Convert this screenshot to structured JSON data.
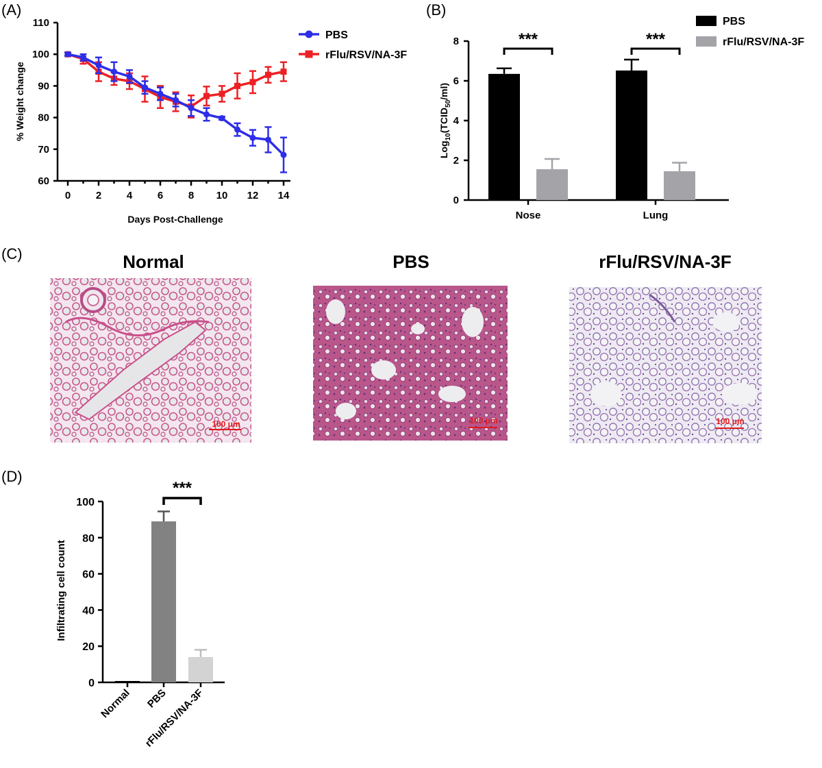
{
  "panels": {
    "A": "(A)",
    "B": "(B)",
    "C": "(C)",
    "D": "(D)"
  },
  "colors": {
    "pbs_line": "#2d2ee8",
    "vaccine_line": "#ec2125",
    "bar_black": "#000000",
    "bar_gray": "#a3a3a8",
    "bar_dark_gray": "#828282",
    "bar_light_gray": "#d3d3d3",
    "scale_bar": "#e21b1b"
  },
  "histology": {
    "titles": [
      "Normal",
      "PBS",
      "rFlu/RSV/NA-3F"
    ],
    "scale_label": "100 μm"
  },
  "chart_data": [
    {
      "panel": "A",
      "type": "line",
      "xlabel": "Days Post-Challenge",
      "ylabel": "% Weight change",
      "xlim": [
        0,
        14
      ],
      "ylim": [
        60,
        110
      ],
      "xticks": [
        0,
        2,
        4,
        6,
        8,
        10,
        12,
        14
      ],
      "yticks": [
        60,
        70,
        80,
        90,
        100,
        110
      ],
      "legend_position": "top-right",
      "x": [
        0,
        1,
        2,
        3,
        4,
        5,
        6,
        7,
        8,
        9,
        10,
        11,
        12,
        13,
        14
      ],
      "series": [
        {
          "name": "PBS",
          "color": "#2d2ee8",
          "marker": "circle",
          "values": [
            100,
            99,
            96.5,
            94.5,
            93,
            89.5,
            87.5,
            85.5,
            83,
            81,
            79.8,
            76.2,
            73.6,
            73,
            68.2
          ],
          "errors": [
            0.5,
            1,
            2.5,
            3,
            2,
            2,
            2,
            2,
            2.5,
            2,
            0.5,
            2,
            2.5,
            4,
            5.5
          ]
        },
        {
          "name": "rFlu/RSV/NA-3F",
          "color": "#ec2125",
          "marker": "square",
          "values": [
            100,
            98.5,
            94.5,
            92.3,
            91.5,
            89,
            86.5,
            85,
            83.5,
            86.8,
            87.5,
            90,
            91.2,
            93.5,
            94.5
          ],
          "errors": [
            0.5,
            1.5,
            3,
            2,
            2.5,
            4,
            3.5,
            3,
            3.5,
            3,
            2.5,
            4,
            3.5,
            2.5,
            3
          ]
        }
      ]
    },
    {
      "panel": "B",
      "type": "bar",
      "ylabel_main": "Log",
      "ylabel_sub1": "10",
      "ylabel_mid": "(TCID",
      "ylabel_sub2": "50",
      "ylabel_end": "/ml)",
      "categories": [
        "Nose",
        "Lung"
      ],
      "ylim": [
        0,
        8
      ],
      "yticks": [
        0,
        2,
        4,
        6,
        8
      ],
      "legend_position": "top-right",
      "series": [
        {
          "name": "PBS",
          "color": "#000000",
          "values": [
            6.35,
            6.52
          ],
          "errors": [
            0.28,
            0.55
          ]
        },
        {
          "name": "rFlu/RSV/NA-3F",
          "color": "#a3a3a8",
          "values": [
            1.55,
            1.45
          ],
          "errors": [
            0.52,
            0.43
          ]
        }
      ],
      "significance": [
        "***",
        "***"
      ]
    },
    {
      "panel": "D",
      "type": "bar",
      "ylabel": "Infiltrating cell count",
      "categories": [
        "Normal",
        "PBS",
        "rFlu/RSV/NA-3F"
      ],
      "ylim": [
        0,
        100
      ],
      "yticks": [
        0,
        20,
        40,
        60,
        80,
        100
      ],
      "values": [
        0.5,
        89,
        14
      ],
      "errors": [
        0,
        5.5,
        4
      ],
      "colors": [
        "#000000",
        "#828282",
        "#d3d3d3"
      ],
      "significance": "***"
    }
  ]
}
